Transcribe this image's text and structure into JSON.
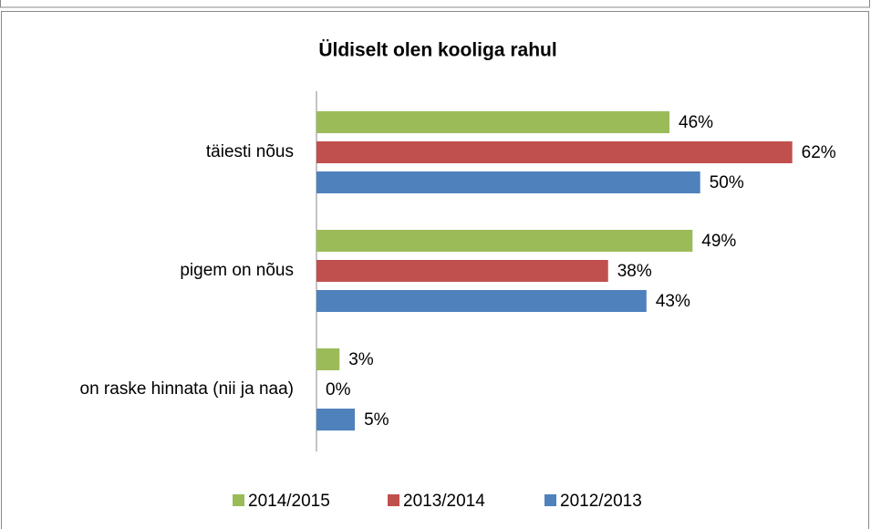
{
  "chart_data": {
    "type": "bar",
    "orientation": "horizontal",
    "title": "Üldiselt olen kooliga rahul",
    "categories": [
      "täiesti nõus",
      "pigem on nõus",
      "on raske hinnata (nii ja naa)"
    ],
    "series": [
      {
        "name": "2014/2015",
        "color": "#9bbb59",
        "values": [
          46,
          49,
          3
        ],
        "value_labels": [
          "46%",
          "49%",
          "3%"
        ]
      },
      {
        "name": "2013/2014",
        "color": "#c0504d",
        "values": [
          62,
          38,
          0
        ],
        "value_labels": [
          "62%",
          "38%",
          "0%"
        ]
      },
      {
        "name": "2012/2013",
        "color": "#4f81bd",
        "values": [
          50,
          43,
          5
        ],
        "value_labels": [
          "50%",
          "43%",
          "5%"
        ]
      }
    ],
    "xlim": [
      0,
      70
    ],
    "legend": "bottom"
  }
}
